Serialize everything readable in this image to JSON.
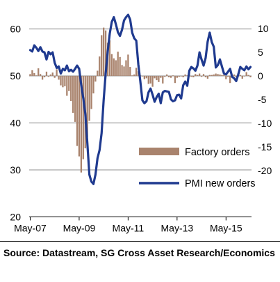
{
  "chart_data": {
    "type": "bar+line",
    "x_tick_labels": [
      "May-07",
      "May-09",
      "May-11",
      "May-13",
      "May-15"
    ],
    "left_axis": {
      "ticks": [
        20,
        30,
        40,
        50,
        60
      ],
      "range": [
        20,
        62
      ]
    },
    "right_axis": {
      "ticks": [
        -20,
        -15,
        -10,
        -5,
        0,
        5,
        10
      ],
      "range": [
        -20,
        10.5
      ]
    },
    "grid": "horizontal, left axis",
    "legend_position": "bottom-right",
    "series": [
      {
        "name": "Factory orders",
        "type": "bar",
        "axis": "right",
        "color": "#a9836d",
        "values": [
          0.4,
          1.2,
          0.6,
          0.1,
          1.6,
          0.4,
          -0.8,
          -0.3,
          0.9,
          -0.2,
          0.3,
          0.7,
          -0.4,
          1.4,
          -0.8,
          -2.0,
          -2.4,
          -2.2,
          -4.2,
          -3.2,
          -5.3,
          -7.8,
          -9.7,
          -14.8,
          -17.0,
          -20.4,
          -17.6,
          -15.3,
          -12.9,
          -9.5,
          -7.0,
          -3.7,
          -1.2,
          1.1,
          4.1,
          8.6,
          10.2,
          9.6,
          7.0,
          7.5,
          4.6,
          3.7,
          3.3,
          5.1,
          4.0,
          2.3,
          2.0,
          3.3,
          4.5,
          1.9,
          0.1,
          0.3,
          1.7,
          1.0,
          0.1,
          -0.1,
          -0.7,
          -0.5,
          -1.7,
          -1.6,
          -2.3,
          -0.5,
          -0.9,
          -1.3,
          -0.4,
          -1.6,
          -0.2,
          0.3,
          -0.3,
          -0.4,
          0.1,
          -1.5,
          -0.4,
          -0.2,
          -0.1,
          -0.3,
          0.3,
          0.1,
          0.8,
          -0.2,
          -0.3,
          0.4,
          0.2,
          0.5,
          -0.2,
          0.4,
          -0.3,
          -0.6,
          0.2,
          0.2,
          0.3,
          0.5,
          0.4,
          0.3,
          0.2,
          0.2,
          -0.7,
          -0.2,
          -1.5,
          -0.1,
          0.3,
          -0.3,
          0.6,
          0.2,
          -0.6,
          -0.1,
          0.8,
          0.2,
          -0.3
        ]
      },
      {
        "name": "PMI new orders",
        "type": "line",
        "axis": "left",
        "color": "#1f3a8f",
        "values": [
          55.5,
          55.2,
          56.5,
          56.0,
          55.3,
          56.1,
          55.2,
          55.0,
          53.5,
          55.1,
          54.6,
          55.0,
          52.8,
          51.7,
          52.0,
          50.5,
          51.5,
          51.2,
          52.2,
          51.0,
          51.3,
          50.9,
          51.5,
          52.2,
          51.5,
          48.1,
          45.3,
          42.0,
          35.8,
          29.0,
          27.5,
          27.0,
          29.0,
          32.5,
          34.2,
          37.8,
          44.8,
          50.5,
          55.2,
          59.0,
          61.5,
          62.5,
          61.0,
          59.3,
          58.5,
          59.8,
          61.8,
          62.5,
          63.0,
          62.0,
          59.2,
          58.0,
          57.5,
          52.5,
          48.8,
          44.8,
          44.2,
          44.6,
          46.5,
          47.3,
          46.0,
          44.5,
          45.5,
          46.2,
          44.2,
          46.5,
          46.8,
          46.7,
          46.6,
          45.0,
          44.6,
          44.8,
          45.9,
          46.0,
          45.2,
          48.0,
          48.8,
          47.9,
          51.1,
          51.9,
          51.6,
          51.1,
          52.2,
          55.0,
          53.5,
          52.2,
          53.8,
          57.3,
          59.2,
          57.2,
          56.2,
          51.8,
          52.3,
          53.5,
          52.0,
          50.5,
          50.3,
          50.9,
          51.5,
          49.8,
          49.5,
          48.9,
          50.3,
          51.9,
          51.5,
          51.2,
          52.0,
          51.4,
          51.9
        ]
      }
    ]
  },
  "source_text": "Source: Datastream, SG Cross Asset Research/Economics"
}
